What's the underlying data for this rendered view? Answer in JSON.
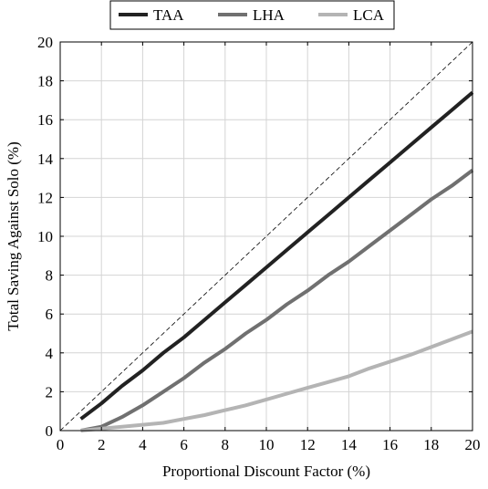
{
  "chart_data": {
    "type": "line",
    "title": "",
    "xlabel": "Proportional Discount Factor (%)",
    "ylabel": "Total Saving Against Solo (%)",
    "xlim": [
      0,
      20
    ],
    "ylim": [
      0,
      20
    ],
    "xticks": [
      0,
      2,
      4,
      6,
      8,
      10,
      12,
      14,
      16,
      18,
      20
    ],
    "yticks": [
      0,
      2,
      4,
      6,
      8,
      10,
      12,
      14,
      16,
      18,
      20
    ],
    "grid": true,
    "legend_position": "top-center",
    "reference_line": {
      "style": "dashed",
      "color": "#000000",
      "points": [
        [
          0,
          0
        ],
        [
          20,
          20
        ]
      ]
    },
    "x": [
      1,
      2,
      3,
      4,
      5,
      6,
      7,
      8,
      9,
      10,
      11,
      12,
      13,
      14,
      15,
      16,
      17,
      18,
      19,
      20
    ],
    "series": [
      {
        "name": "TAA",
        "color": "#222222",
        "values": [
          0.6,
          1.4,
          2.3,
          3.1,
          4.0,
          4.8,
          5.7,
          6.6,
          7.5,
          8.4,
          9.3,
          10.2,
          11.1,
          12.0,
          12.9,
          13.8,
          14.7,
          15.6,
          16.5,
          17.4
        ]
      },
      {
        "name": "LHA",
        "color": "#707070",
        "values": [
          0.0,
          0.2,
          0.7,
          1.3,
          2.0,
          2.7,
          3.5,
          4.2,
          5.0,
          5.7,
          6.5,
          7.2,
          8.0,
          8.7,
          9.5,
          10.3,
          11.1,
          11.9,
          12.6,
          13.4
        ]
      },
      {
        "name": "LCA",
        "color": "#b4b4b4",
        "values": [
          0.0,
          0.1,
          0.2,
          0.3,
          0.4,
          0.6,
          0.8,
          1.05,
          1.3,
          1.6,
          1.9,
          2.2,
          2.5,
          2.8,
          3.2,
          3.55,
          3.9,
          4.3,
          4.7,
          5.1
        ]
      }
    ]
  }
}
